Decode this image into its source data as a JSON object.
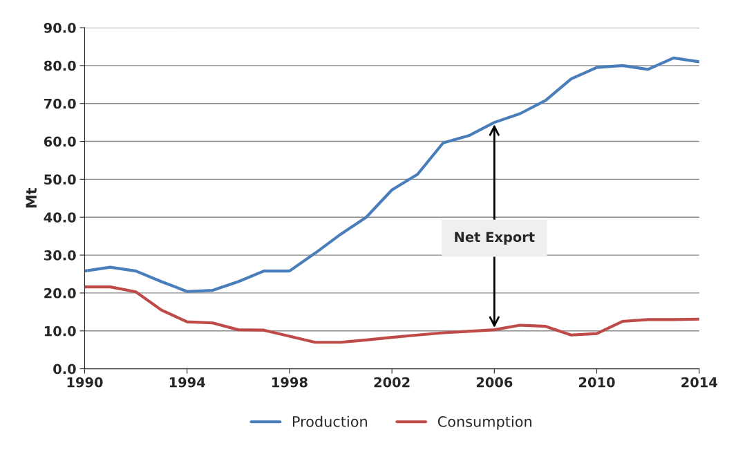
{
  "chart_data": {
    "type": "line",
    "ylabel": "Mt",
    "x": [
      1990,
      1991,
      1992,
      1993,
      1994,
      1995,
      1996,
      1997,
      1998,
      1999,
      2000,
      2001,
      2002,
      2003,
      2004,
      2005,
      2006,
      2007,
      2008,
      2009,
      2010,
      2011,
      2012,
      2013,
      2014
    ],
    "series": [
      {
        "name": "Production",
        "color": "#4a7ebb",
        "values": [
          25.8,
          26.8,
          25.8,
          23.0,
          20.4,
          20.7,
          23.0,
          25.8,
          25.8,
          30.5,
          35.5,
          40.0,
          47.2,
          51.3,
          59.6,
          61.5,
          65.0,
          67.3,
          70.8,
          76.5,
          79.5,
          80.0,
          79.0,
          82.0,
          81.0
        ]
      },
      {
        "name": "Consumption",
        "color": "#be4b48",
        "values": [
          21.6,
          21.6,
          20.3,
          15.5,
          12.4,
          12.1,
          10.3,
          10.2,
          8.6,
          7.0,
          7.0,
          7.6,
          8.3,
          8.9,
          9.5,
          9.9,
          10.3,
          11.5,
          11.2,
          8.9,
          9.3,
          12.5,
          13.0,
          13.0,
          13.1
        ]
      }
    ],
    "xlim": [
      1990,
      2014
    ],
    "xticks": [
      1990,
      1994,
      1998,
      2002,
      2006,
      2010,
      2014
    ],
    "ylim": [
      0,
      90
    ],
    "yticks": [
      {
        "value": 0,
        "label": "0.0"
      },
      {
        "value": 10,
        "label": "10.0"
      },
      {
        "value": 20,
        "label": "20.0"
      },
      {
        "value": 30,
        "label": "30.0"
      },
      {
        "value": 40,
        "label": "40.0"
      },
      {
        "value": 50,
        "label": "50.0"
      },
      {
        "value": 60,
        "label": "60.0"
      },
      {
        "value": 70,
        "label": "70.0"
      },
      {
        "value": 80,
        "label": "80.0"
      },
      {
        "value": 90,
        "label": "90.0"
      }
    ],
    "annotations": [
      {
        "text": "Net Export",
        "x": 2006,
        "y": 65.0
      }
    ],
    "grid": "y",
    "legend": "bottom",
    "marker": "none",
    "line_style": "solid"
  }
}
